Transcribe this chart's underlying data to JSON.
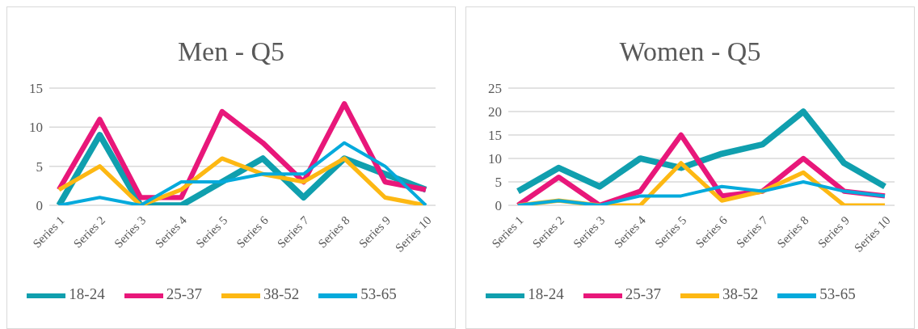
{
  "chart_data": [
    {
      "type": "line",
      "title": "Men - Q5",
      "categories": [
        "Series 1",
        "Series 2",
        "Series 3",
        "Series 4",
        "Series 5",
        "Series 6",
        "Series 7",
        "Series 8",
        "Series 9",
        "Series 10"
      ],
      "series": [
        {
          "name": "18-24",
          "color": "#109fae",
          "values": [
            0,
            9,
            0,
            0,
            3,
            6,
            1,
            6,
            4,
            2
          ]
        },
        {
          "name": "25-37",
          "color": "#e8177a",
          "values": [
            2,
            11,
            1,
            1,
            12,
            8,
            3,
            13,
            3,
            2
          ]
        },
        {
          "name": "38-52",
          "color": "#fdb813",
          "values": [
            2,
            5,
            0,
            2,
            6,
            4,
            3,
            6,
            1,
            0
          ]
        },
        {
          "name": "53-65",
          "color": "#04aadc",
          "values": [
            0,
            1,
            0,
            3,
            3,
            4,
            4,
            8,
            5,
            0
          ]
        }
      ],
      "ylim": [
        0,
        15
      ],
      "yticks": [
        0,
        5,
        10,
        15
      ],
      "grid": "y",
      "legend": "bottom",
      "marker": "none",
      "line_style": "solid"
    },
    {
      "type": "line",
      "title": "Women - Q5",
      "categories": [
        "Series 1",
        "Series 2",
        "Series 3",
        "Series 4",
        "Series 5",
        "Series 6",
        "Series 7",
        "Series 8",
        "Series 9",
        "Series 10"
      ],
      "series": [
        {
          "name": "18-24",
          "color": "#109fae",
          "values": [
            3,
            8,
            4,
            10,
            8,
            11,
            13,
            20,
            9,
            4
          ]
        },
        {
          "name": "25-37",
          "color": "#e8177a",
          "values": [
            0,
            6,
            0,
            3,
            15,
            2,
            3,
            10,
            3,
            2
          ]
        },
        {
          "name": "38-52",
          "color": "#fdb813",
          "values": [
            0,
            1,
            0,
            0,
            9,
            1,
            3,
            7,
            0,
            0
          ]
        },
        {
          "name": "53-65",
          "color": "#04aadc",
          "values": [
            0,
            1,
            0,
            2,
            2,
            4,
            3,
            5,
            3,
            2
          ]
        }
      ],
      "ylim": [
        0,
        25
      ],
      "yticks": [
        0,
        5,
        10,
        15,
        20,
        25
      ],
      "grid": "y",
      "legend": "bottom",
      "marker": "none",
      "line_style": "solid"
    }
  ]
}
